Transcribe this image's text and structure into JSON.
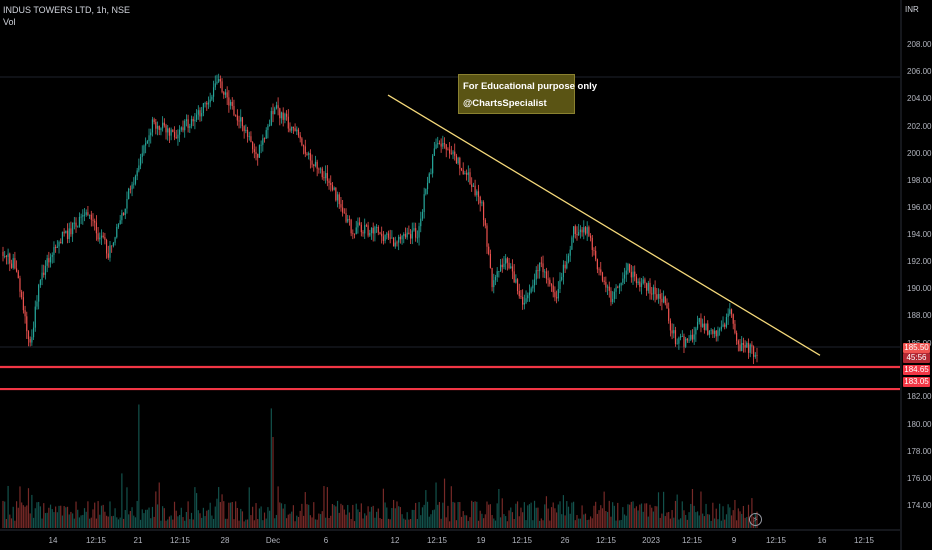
{
  "legend": {
    "symbol_line": "INDUS TOWERS LTD, 1h, NSE",
    "vol_label": "Vol"
  },
  "annotation": {
    "line1": "For Educational purpose only",
    "line2": "@ChartsSpecialist"
  },
  "colors": {
    "background": "#000000",
    "up": "#26a69a",
    "down": "#ef5350",
    "trendline": "#f5d97a",
    "support": "#f23645",
    "axis_text": "#b2b5be"
  },
  "icons": {
    "lightning": "lightning-icon"
  },
  "chart_data": {
    "type": "candlestick",
    "currency": "INR",
    "y_ticks": [
      "208.00",
      "206.00",
      "204.00",
      "202.00",
      "200.00",
      "198.00",
      "196.00",
      "194.00",
      "192.00",
      "190.00",
      "188.00",
      "186.00",
      "182.00",
      "180.00",
      "178.00",
      "176.00",
      "174.00"
    ],
    "x_ticks": [
      "14",
      "12:15",
      "21",
      "12:15",
      "28",
      "Dec",
      "6",
      "12",
      "12:15",
      "19",
      "12:15",
      "26",
      "12:15",
      "2023",
      "12:15",
      "9",
      "12:15",
      "16",
      "12:15"
    ],
    "price_tags": [
      {
        "label": "185.50",
        "kind": "last"
      },
      {
        "label": "45:56",
        "kind": "countdown"
      },
      {
        "label": "184.65",
        "kind": "support"
      },
      {
        "label": "183.05",
        "kind": "support"
      }
    ],
    "trendline": {
      "start": {
        "x": "Dec 9 10:15",
        "y": 204.4
      },
      "end": {
        "x": "Jan 14 12:15",
        "y": 185.5
      }
    },
    "support_levels": [
      184.65,
      183.05
    ],
    "anchors": [
      {
        "t": 0,
        "p": 192.8
      },
      {
        "t": 7,
        "p": 192.0
      },
      {
        "t": 16,
        "p": 186.2
      },
      {
        "t": 22,
        "p": 191.0
      },
      {
        "t": 32,
        "p": 193.8
      },
      {
        "t": 50,
        "p": 195.6
      },
      {
        "t": 62,
        "p": 193.0
      },
      {
        "t": 75,
        "p": 197.5
      },
      {
        "t": 88,
        "p": 202.5
      },
      {
        "t": 102,
        "p": 201.5
      },
      {
        "t": 115,
        "p": 203.0
      },
      {
        "t": 127,
        "p": 205.3
      },
      {
        "t": 140,
        "p": 202.5
      },
      {
        "t": 150,
        "p": 200.0
      },
      {
        "t": 160,
        "p": 203.5
      },
      {
        "t": 172,
        "p": 201.8
      },
      {
        "t": 182,
        "p": 199.5
      },
      {
        "t": 192,
        "p": 198.0
      },
      {
        "t": 205,
        "p": 194.8
      },
      {
        "t": 218,
        "p": 194.5
      },
      {
        "t": 230,
        "p": 193.8
      },
      {
        "t": 244,
        "p": 194.5
      },
      {
        "t": 256,
        "p": 201.3
      },
      {
        "t": 266,
        "p": 200.0
      },
      {
        "t": 276,
        "p": 198.0
      },
      {
        "t": 282,
        "p": 196.5
      },
      {
        "t": 288,
        "p": 190.5
      },
      {
        "t": 296,
        "p": 192.5
      },
      {
        "t": 306,
        "p": 189.5
      },
      {
        "t": 316,
        "p": 192.0
      },
      {
        "t": 326,
        "p": 189.8
      },
      {
        "t": 336,
        "p": 194.5
      },
      {
        "t": 344,
        "p": 194.8
      },
      {
        "t": 350,
        "p": 191.8
      },
      {
        "t": 358,
        "p": 189.8
      },
      {
        "t": 368,
        "p": 191.8
      },
      {
        "t": 378,
        "p": 190.5
      },
      {
        "t": 388,
        "p": 189.8
      },
      {
        "t": 396,
        "p": 186.5
      },
      {
        "t": 404,
        "p": 186.5
      },
      {
        "t": 410,
        "p": 187.8
      },
      {
        "t": 420,
        "p": 187.0
      },
      {
        "t": 428,
        "p": 188.5
      },
      {
        "t": 434,
        "p": 186.0
      },
      {
        "t": 440,
        "p": 186.0
      },
      {
        "t": 444,
        "p": 185.5
      }
    ],
    "volume_spikes": [
      {
        "t": 10,
        "v": 0.32
      },
      {
        "t": 70,
        "v": 0.42
      },
      {
        "t": 80,
        "v": 0.95
      },
      {
        "t": 92,
        "v": 0.35
      },
      {
        "t": 158,
        "v": 0.92
      },
      {
        "t": 159,
        "v": 0.7
      },
      {
        "t": 162,
        "v": 0.32
      },
      {
        "t": 255,
        "v": 0.35
      },
      {
        "t": 260,
        "v": 0.38
      },
      {
        "t": 292,
        "v": 0.3
      },
      {
        "t": 354,
        "v": 0.28
      },
      {
        "t": 406,
        "v": 0.3
      }
    ]
  }
}
